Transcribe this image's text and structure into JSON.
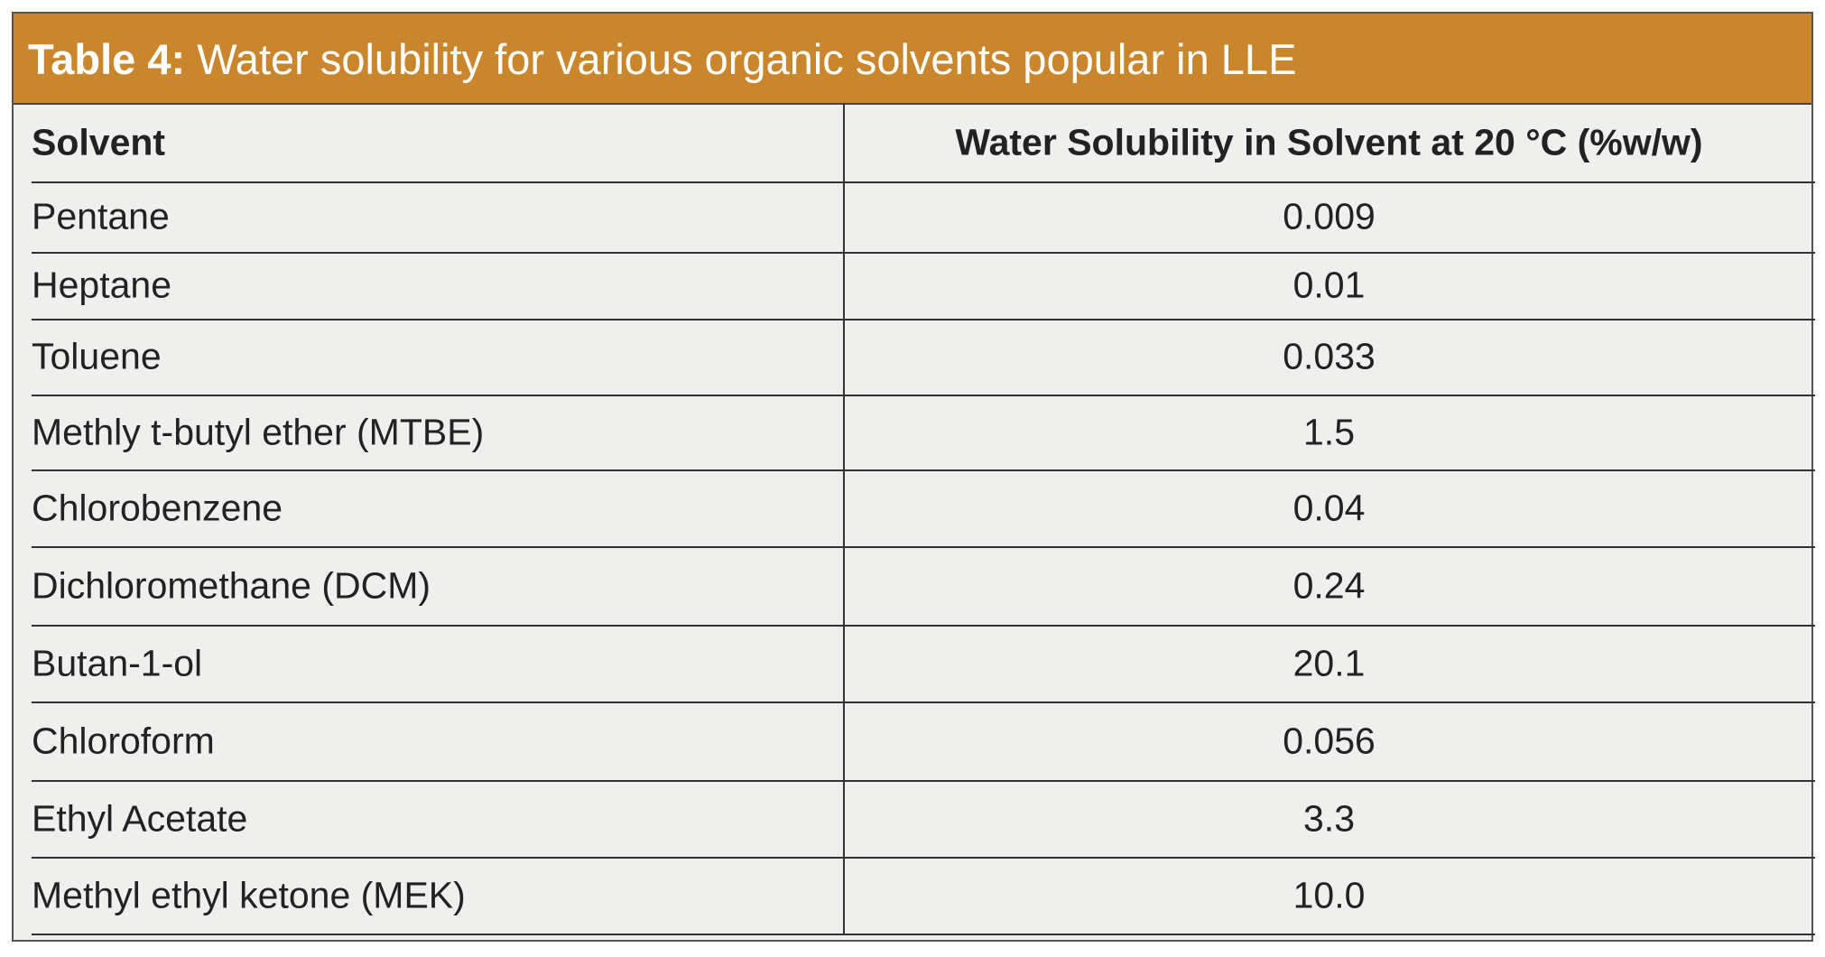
{
  "title": {
    "label": "Table 4:",
    "text": "Water solubility for various organic solvents popular in LLE"
  },
  "table": {
    "header": [
      "Solvent",
      "Water Solubility in Solvent at 20 °C (%w/w)"
    ],
    "rows": [
      [
        "Pentane",
        "0.009"
      ],
      [
        "Heptane",
        "0.01"
      ],
      [
        "Toluene",
        "0.033"
      ],
      [
        "Methly t-butyl ether (MTBE)",
        "1.5"
      ],
      [
        "Chlorobenzene",
        "0.04"
      ],
      [
        "Dichloromethane (DCM)",
        "0.24"
      ],
      [
        "Butan-1-ol",
        "20.1"
      ],
      [
        "Chloroform",
        "0.056"
      ],
      [
        "Ethyl Acetate",
        "3.3"
      ],
      [
        "Methyl ethyl ketone (MEK)",
        "10.0"
      ]
    ]
  }
}
